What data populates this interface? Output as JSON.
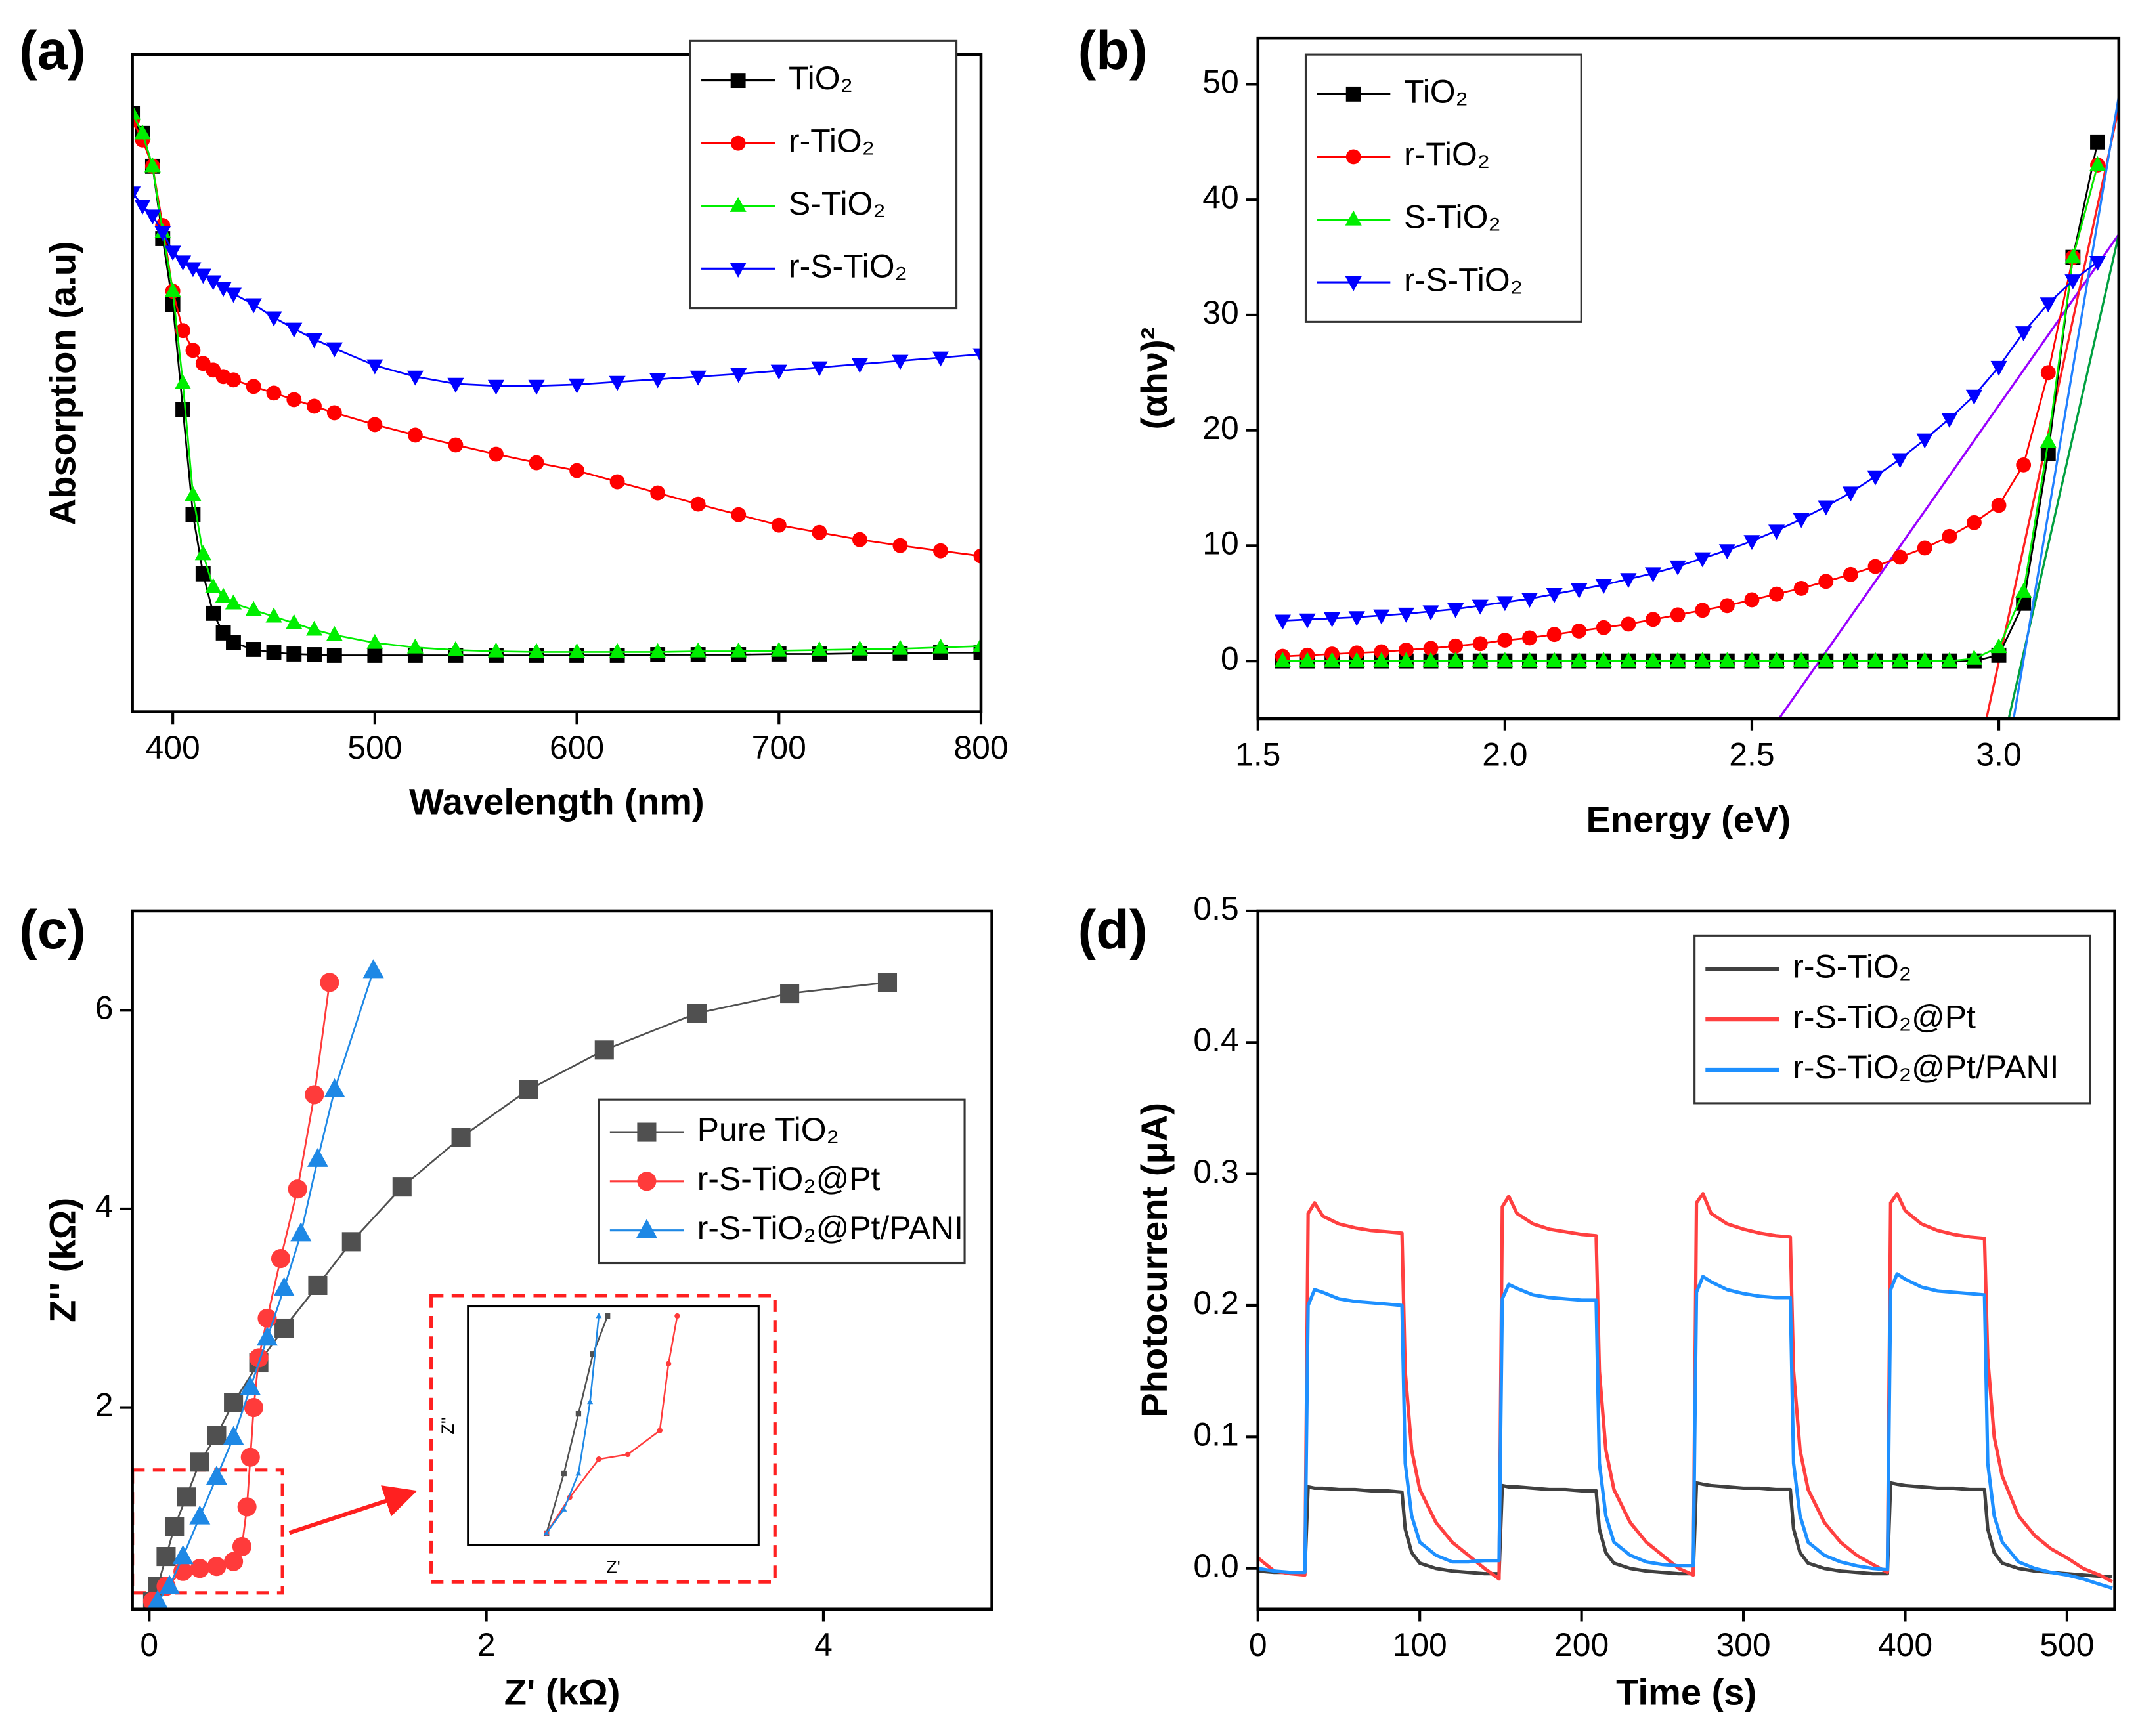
{
  "chart_data": [
    {
      "type": "line",
      "panel_label": "(a)",
      "xlabel": "Wavelength (nm)",
      "ylabel": "Absorption (a.u)",
      "xlim": [
        380,
        800
      ],
      "ylim": [
        0,
        1
      ],
      "xticks": [
        400,
        500,
        600,
        700,
        800
      ],
      "yticks": [],
      "legend": "upper right",
      "x": [
        380,
        385,
        390,
        395,
        400,
        405,
        410,
        415,
        420,
        425,
        430,
        440,
        450,
        460,
        470,
        480,
        500,
        520,
        540,
        560,
        580,
        600,
        620,
        640,
        660,
        680,
        700,
        720,
        740,
        760,
        780,
        800
      ],
      "series": [
        {
          "name": "TiO₂",
          "color": "#000000",
          "marker": "square",
          "values": [
            0.91,
            0.88,
            0.83,
            0.72,
            0.62,
            0.46,
            0.3,
            0.21,
            0.15,
            0.12,
            0.105,
            0.095,
            0.09,
            0.088,
            0.087,
            0.086,
            0.086,
            0.086,
            0.086,
            0.086,
            0.086,
            0.086,
            0.086,
            0.087,
            0.087,
            0.087,
            0.088,
            0.088,
            0.089,
            0.089,
            0.09,
            0.09
          ]
        },
        {
          "name": "r-TiO₂",
          "color": "#ff0000",
          "marker": "circle",
          "values": [
            0.9,
            0.87,
            0.83,
            0.74,
            0.64,
            0.58,
            0.55,
            0.53,
            0.52,
            0.51,
            0.505,
            0.495,
            0.485,
            0.475,
            0.465,
            0.455,
            0.437,
            0.421,
            0.406,
            0.392,
            0.379,
            0.367,
            0.35,
            0.333,
            0.316,
            0.3,
            0.284,
            0.273,
            0.262,
            0.253,
            0.245,
            0.237
          ]
        },
        {
          "name": "S-TiO₂",
          "color": "#00ee00",
          "marker": "triangle-up",
          "values": [
            0.91,
            0.88,
            0.83,
            0.73,
            0.64,
            0.5,
            0.33,
            0.24,
            0.19,
            0.175,
            0.165,
            0.155,
            0.145,
            0.135,
            0.125,
            0.117,
            0.105,
            0.098,
            0.094,
            0.092,
            0.091,
            0.091,
            0.091,
            0.091,
            0.092,
            0.092,
            0.093,
            0.094,
            0.095,
            0.096,
            0.098,
            0.1
          ]
        },
        {
          "name": "r-S-TiO₂",
          "color": "#0000ff",
          "marker": "triangle-down",
          "values": [
            0.79,
            0.77,
            0.755,
            0.73,
            0.7,
            0.685,
            0.675,
            0.665,
            0.655,
            0.645,
            0.636,
            0.62,
            0.6,
            0.583,
            0.567,
            0.553,
            0.527,
            0.51,
            0.499,
            0.496,
            0.496,
            0.498,
            0.502,
            0.506,
            0.51,
            0.514,
            0.519,
            0.524,
            0.529,
            0.534,
            0.539,
            0.544
          ]
        }
      ]
    },
    {
      "type": "line",
      "panel_label": "(b)",
      "xlabel": "Energy (eV)",
      "ylabel": "(αhν)²",
      "xlim": [
        1.5,
        3.243
      ],
      "ylim": [
        -5,
        54
      ],
      "xticks": [
        1.5,
        {
          "value": 2,
          "label": "2.0"
        },
        2.5,
        {
          "value": 3,
          "label": "3.0"
        }
      ],
      "yticks": [
        0,
        10,
        20,
        30,
        40,
        50
      ],
      "legend": "upper left",
      "x": [
        1.55,
        1.6,
        1.65,
        1.7,
        1.75,
        1.8,
        1.85,
        1.9,
        1.95,
        2.0,
        2.05,
        2.1,
        2.15,
        2.2,
        2.25,
        2.3,
        2.35,
        2.4,
        2.45,
        2.5,
        2.55,
        2.6,
        2.65,
        2.7,
        2.75,
        2.8,
        2.85,
        2.9,
        2.95,
        3.0,
        3.05,
        3.1,
        3.15,
        3.2
      ],
      "series": [
        {
          "name": "TiO₂",
          "color": "#000000",
          "marker": "square",
          "values": [
            0,
            0,
            0,
            0,
            0,
            0,
            0,
            0,
            0,
            0,
            0,
            0,
            0,
            0,
            0,
            0,
            0,
            0,
            0,
            0,
            0,
            0,
            0,
            0,
            0,
            0,
            0,
            0,
            0,
            0.5,
            5,
            18,
            35,
            45
          ]
        },
        {
          "name": "r-TiO₂",
          "color": "#ff0000",
          "marker": "circle",
          "values": [
            0.4,
            0.5,
            0.6,
            0.7,
            0.8,
            0.95,
            1.1,
            1.3,
            1.5,
            1.8,
            2.0,
            2.3,
            2.6,
            2.9,
            3.2,
            3.6,
            4.0,
            4.4,
            4.8,
            5.3,
            5.8,
            6.3,
            6.9,
            7.5,
            8.2,
            9.0,
            9.8,
            10.8,
            12,
            13.5,
            17,
            25,
            35,
            43
          ]
        },
        {
          "name": "S-TiO₂",
          "color": "#00ee00",
          "marker": "triangle-up",
          "values": [
            0,
            0,
            0,
            0,
            0,
            0,
            0,
            0,
            0,
            0,
            0,
            0,
            0,
            0,
            0,
            0,
            0,
            0,
            0,
            0,
            0,
            0,
            0,
            0,
            0,
            0,
            0,
            0,
            0.2,
            1.2,
            6,
            19,
            35,
            43
          ]
        },
        {
          "name": "r-S-TiO₂",
          "color": "#0000ff",
          "marker": "triangle-down",
          "values": [
            3.5,
            3.6,
            3.7,
            3.8,
            3.95,
            4.1,
            4.3,
            4.5,
            4.8,
            5.1,
            5.4,
            5.8,
            6.2,
            6.6,
            7.1,
            7.6,
            8.2,
            8.9,
            9.6,
            10.4,
            11.3,
            12.3,
            13.4,
            14.6,
            16,
            17.5,
            19.2,
            21,
            23,
            25.5,
            28.5,
            31,
            33,
            34.6
          ]
        }
      ],
      "fit_lines": [
        {
          "color": "#9900ff",
          "x": [
            2.555,
            3.243
          ],
          "values": [
            -5,
            37
          ]
        },
        {
          "color": "#ff2020",
          "x": [
            2.975,
            3.243
          ],
          "values": [
            -5,
            48
          ]
        },
        {
          "color": "#00a040",
          "x": [
            3.02,
            3.243
          ],
          "values": [
            -5,
            37
          ]
        },
        {
          "color": "#2080ff",
          "x": [
            3.03,
            3.243
          ],
          "values": [
            -5,
            49
          ]
        }
      ]
    },
    {
      "type": "scatter",
      "panel_label": "(c)",
      "xlabel": "Z' (kΩ)",
      "ylabel": "Z'' (kΩ)",
      "xlim": [
        -0.1,
        5.0
      ],
      "ylim": [
        -0.03,
        7
      ],
      "xticks": [
        0,
        2,
        4
      ],
      "yticks": [
        2,
        4,
        6
      ],
      "legend": "center right",
      "series": [
        {
          "name": "Pure TiO₂",
          "color": "#505050",
          "marker": "square",
          "x": [
            0.02,
            0.05,
            0.1,
            0.15,
            0.22,
            0.3,
            0.4,
            0.5,
            0.65,
            0.8,
            1.0,
            1.2,
            1.5,
            1.85,
            2.25,
            2.7,
            3.25,
            3.8,
            4.38
          ],
          "values": [
            0.05,
            0.2,
            0.5,
            0.8,
            1.1,
            1.45,
            1.72,
            2.05,
            2.45,
            2.8,
            3.23,
            3.67,
            4.22,
            4.72,
            5.2,
            5.6,
            5.97,
            6.17,
            6.28
          ]
        },
        {
          "name": "r-S-TiO₂@Pt",
          "color": "#ff3b3b",
          "marker": "circle",
          "x": [
            0.02,
            0.1,
            0.2,
            0.3,
            0.4,
            0.5,
            0.55,
            0.58,
            0.6,
            0.62,
            0.65,
            0.7,
            0.78,
            0.88,
            0.98,
            1.07
          ],
          "values": [
            0.05,
            0.2,
            0.35,
            0.38,
            0.4,
            0.45,
            0.6,
            1.0,
            1.5,
            2.0,
            2.5,
            2.9,
            3.5,
            4.2,
            5.15,
            6.28
          ]
        },
        {
          "name": "r-S-TiO₂@Pt/PANI",
          "color": "#1e88e5",
          "marker": "triangle-up",
          "x": [
            0.05,
            0.12,
            0.2,
            0.3,
            0.4,
            0.5,
            0.6,
            0.7,
            0.8,
            0.9,
            1.0,
            1.1,
            1.33
          ],
          "values": [
            0.05,
            0.2,
            0.5,
            0.9,
            1.3,
            1.7,
            2.2,
            2.7,
            3.2,
            3.75,
            4.5,
            5.2,
            6.4
          ]
        }
      ],
      "inset": {
        "xlabel": "Z'",
        "ylabel": "Z''",
        "xlim": [
          0,
          1
        ],
        "ylim": [
          0,
          1
        ],
        "series": [
          {
            "color": "#505050",
            "x": [
              0.27,
              0.33,
              0.38,
              0.43,
              0.48
            ],
            "values": [
              0.05,
              0.3,
              0.55,
              0.8,
              0.96
            ]
          },
          {
            "color": "#ff3b3b",
            "x": [
              0.27,
              0.35,
              0.45,
              0.55,
              0.66,
              0.69,
              0.72
            ],
            "values": [
              0.05,
              0.2,
              0.36,
              0.38,
              0.48,
              0.76,
              0.96
            ]
          },
          {
            "color": "#1e88e5",
            "x": [
              0.27,
              0.33,
              0.38,
              0.42,
              0.45
            ],
            "values": [
              0.05,
              0.15,
              0.3,
              0.6,
              0.96
            ]
          }
        ]
      }
    },
    {
      "type": "line",
      "panel_label": "(d)",
      "xlabel": "Time (s)",
      "ylabel": "Photocurrent (μA)",
      "xlim": [
        0,
        529.5
      ],
      "ylim": [
        -0.031,
        0.5
      ],
      "xticks": [
        0,
        100,
        200,
        300,
        400,
        500
      ],
      "yticks": [
        {
          "value": 0,
          "label": "0.0"
        },
        0.1,
        0.2,
        0.3,
        0.4,
        0.5
      ],
      "legend": "upper right",
      "x": [
        0,
        10,
        20,
        29,
        31,
        35,
        40,
        50,
        60,
        70,
        80,
        89,
        91,
        95,
        100,
        110,
        120,
        130,
        140,
        149,
        151,
        155,
        160,
        170,
        180,
        190,
        200,
        209,
        211,
        215,
        220,
        230,
        240,
        250,
        260,
        269,
        271,
        275,
        280,
        290,
        300,
        310,
        320,
        329,
        331,
        335,
        340,
        350,
        360,
        370,
        380,
        389,
        391,
        395,
        400,
        410,
        420,
        430,
        440,
        449,
        451,
        455,
        460,
        470,
        480,
        490,
        500,
        510,
        520,
        528
      ],
      "series": [
        {
          "name": "r-S-TiO₂",
          "color": "#404040",
          "values": [
            -0.002,
            -0.003,
            -0.003,
            -0.003,
            0.062,
            0.061,
            0.061,
            0.06,
            0.06,
            0.059,
            0.059,
            0.058,
            0.03,
            0.012,
            0.004,
            0.0,
            -0.002,
            -0.003,
            -0.004,
            -0.004,
            0.063,
            0.062,
            0.062,
            0.061,
            0.06,
            0.06,
            0.059,
            0.059,
            0.03,
            0.012,
            0.004,
            0.0,
            -0.002,
            -0.003,
            -0.004,
            -0.004,
            0.065,
            0.064,
            0.063,
            0.062,
            0.061,
            0.061,
            0.06,
            0.06,
            0.03,
            0.012,
            0.004,
            0.0,
            -0.002,
            -0.003,
            -0.004,
            -0.004,
            0.065,
            0.064,
            0.063,
            0.062,
            0.061,
            0.061,
            0.06,
            0.06,
            0.03,
            0.012,
            0.004,
            0.0,
            -0.002,
            -0.003,
            -0.004,
            -0.005,
            -0.006,
            -0.006
          ]
        },
        {
          "name": "r-S-TiO₂@Pt",
          "color": "#ff4040",
          "values": [
            0.008,
            -0.002,
            -0.004,
            -0.005,
            0.27,
            0.278,
            0.268,
            0.262,
            0.259,
            0.257,
            0.256,
            0.255,
            0.15,
            0.09,
            0.06,
            0.035,
            0.02,
            0.01,
            0.0,
            -0.008,
            0.275,
            0.283,
            0.27,
            0.262,
            0.258,
            0.256,
            0.254,
            0.253,
            0.15,
            0.09,
            0.06,
            0.035,
            0.02,
            0.01,
            0.0,
            -0.005,
            0.278,
            0.285,
            0.27,
            0.262,
            0.258,
            0.255,
            0.253,
            0.252,
            0.15,
            0.09,
            0.06,
            0.035,
            0.02,
            0.01,
            0.003,
            -0.003,
            0.278,
            0.285,
            0.272,
            0.262,
            0.257,
            0.254,
            0.252,
            0.251,
            0.16,
            0.1,
            0.07,
            0.04,
            0.025,
            0.015,
            0.008,
            0.0,
            -0.005,
            -0.01
          ]
        },
        {
          "name": "r-S-TiO₂@Pt/PANI",
          "color": "#1e90ff",
          "values": [
            0.0,
            -0.002,
            -0.003,
            -0.003,
            0.2,
            0.212,
            0.21,
            0.205,
            0.203,
            0.202,
            0.201,
            0.2,
            0.08,
            0.04,
            0.02,
            0.01,
            0.005,
            0.005,
            0.006,
            0.006,
            0.205,
            0.216,
            0.213,
            0.208,
            0.206,
            0.205,
            0.204,
            0.204,
            0.08,
            0.04,
            0.02,
            0.01,
            0.005,
            0.003,
            0.002,
            0.002,
            0.21,
            0.222,
            0.218,
            0.212,
            0.209,
            0.207,
            0.206,
            0.206,
            0.08,
            0.04,
            0.02,
            0.01,
            0.005,
            0.002,
            0.0,
            -0.001,
            0.212,
            0.224,
            0.22,
            0.214,
            0.211,
            0.21,
            0.209,
            0.208,
            0.08,
            0.04,
            0.02,
            0.005,
            0.0,
            -0.003,
            -0.005,
            -0.008,
            -0.012,
            -0.015
          ]
        }
      ]
    }
  ]
}
